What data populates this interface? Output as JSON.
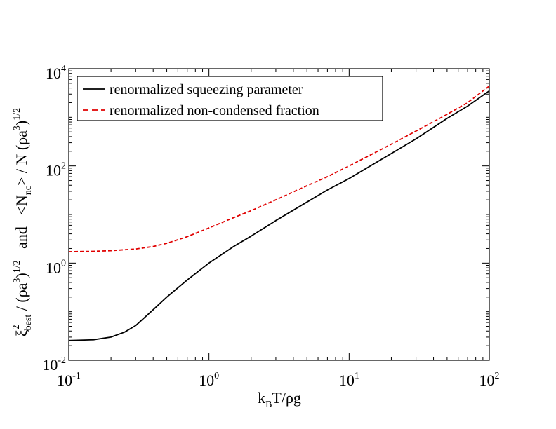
{
  "chart_data": {
    "type": "line",
    "xscale": "log",
    "yscale": "log",
    "xlim": [
      0.1,
      100
    ],
    "ylim": [
      0.01,
      10000
    ],
    "x_ticks": [
      {
        "base": "10",
        "exp": "-1"
      },
      {
        "base": "10",
        "exp": "0"
      },
      {
        "base": "10",
        "exp": "1"
      },
      {
        "base": "10",
        "exp": "2"
      }
    ],
    "y_ticks": [
      {
        "base": "10",
        "exp": "-2"
      },
      {
        "base": "10",
        "exp": "0"
      },
      {
        "base": "10",
        "exp": "2"
      },
      {
        "base": "10",
        "exp": "4"
      }
    ],
    "xlabel": {
      "pre": "k",
      "sub": "B",
      "post": "T/ρg"
    },
    "ylabel": {
      "p1": "ξ",
      "p1_sup": "2",
      "p1_sub": "best",
      "p2": " / (ρa",
      "p2_sup": "3",
      "p3": ")",
      "p3_sup": "1/2",
      "p4": "   and   <N",
      "p4_sub": "nc",
      "p5": "> / N (ρa",
      "p5_sup": "3",
      "p6": ")",
      "p6_sup": "1/2"
    },
    "legend_position": "top-left",
    "grid": false,
    "series": [
      {
        "name": "renormalized squeezing parameter",
        "color": "#000000",
        "dash": "solid",
        "x": [
          0.1,
          0.15,
          0.2,
          0.25,
          0.3,
          0.4,
          0.5,
          0.7,
          1,
          1.5,
          2,
          3,
          5,
          7,
          10,
          20,
          30,
          50,
          70,
          100
        ],
        "y": [
          0.0255,
          0.0265,
          0.03,
          0.038,
          0.052,
          0.11,
          0.2,
          0.45,
          1.0,
          2.2,
          3.6,
          7.5,
          18,
          32,
          55,
          180,
          360,
          950,
          1700,
          3500
        ]
      },
      {
        "name": "renormalized non-condensed fraction",
        "color": "#e00000",
        "dash": "dashed",
        "x": [
          0.1,
          0.15,
          0.2,
          0.3,
          0.4,
          0.5,
          0.7,
          1,
          1.5,
          2,
          3,
          5,
          7,
          10,
          20,
          30,
          50,
          70,
          100
        ],
        "y": [
          1.72,
          1.75,
          1.8,
          1.95,
          2.2,
          2.55,
          3.5,
          5.3,
          8.6,
          12,
          20,
          39,
          60,
          100,
          280,
          520,
          1150,
          2000,
          4400
        ]
      }
    ]
  }
}
